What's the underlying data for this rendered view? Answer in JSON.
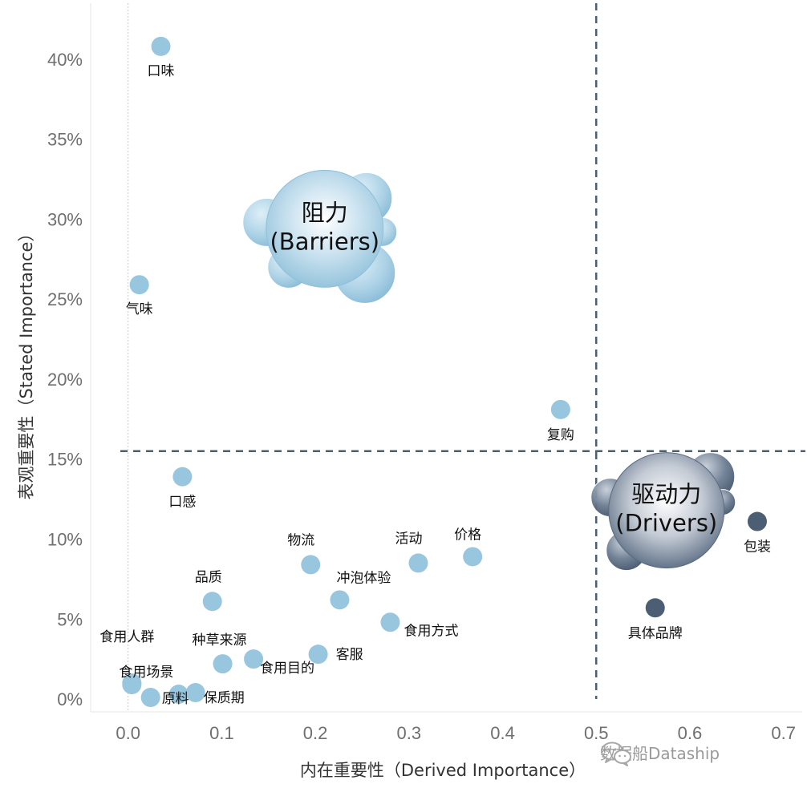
{
  "chart_data": {
    "type": "scatter",
    "xlabel": "内在重要性（Derived Importance）",
    "ylabel": "表观重要性（Stated Importance）",
    "xlim": [
      -0.04,
      0.72
    ],
    "ylim": [
      -0.8,
      43.5
    ],
    "x_ticks": [
      0.0,
      0.1,
      0.2,
      0.3,
      0.4,
      0.5,
      0.6,
      0.7
    ],
    "x_tick_labels": [
      "0.0",
      "0.1",
      "0.2",
      "0.3",
      "0.4",
      "0.5",
      "0.6",
      "0.7"
    ],
    "y_ticks": [
      0,
      5,
      10,
      15,
      20,
      25,
      30,
      35,
      40
    ],
    "y_tick_labels": [
      "0%",
      "5%",
      "10%",
      "15%",
      "20%",
      "25%",
      "30%",
      "35%",
      "40%"
    ],
    "reference_lines": {
      "x": 0.5,
      "y": 15.5
    },
    "colors": {
      "light": "#98c6df",
      "dark": "#4b5e74",
      "reference": "#4e5f70",
      "zero_line": "#c8c8c8"
    },
    "points": [
      {
        "label": "口味",
        "x": 0.035,
        "y": 40.8,
        "group": "light"
      },
      {
        "label": "气味",
        "x": 0.012,
        "y": 25.9,
        "group": "light"
      },
      {
        "label": "复购",
        "x": 0.462,
        "y": 18.1,
        "group": "light"
      },
      {
        "label": "口感",
        "x": 0.058,
        "y": 13.9,
        "group": "light"
      },
      {
        "label": "价格",
        "x": 0.368,
        "y": 8.9,
        "group": "light"
      },
      {
        "label": "活动",
        "x": 0.31,
        "y": 8.5,
        "group": "light"
      },
      {
        "label": "物流",
        "x": 0.195,
        "y": 8.4,
        "group": "light"
      },
      {
        "label": "冲泡体验",
        "x": 0.226,
        "y": 6.2,
        "group": "light"
      },
      {
        "label": "品质",
        "x": 0.09,
        "y": 6.1,
        "group": "light"
      },
      {
        "label": "食用方式",
        "x": 0.28,
        "y": 4.8,
        "group": "light"
      },
      {
        "label": "食用人群",
        "x": 0.004,
        "y": 1.0,
        "group": "light"
      },
      {
        "label": "食用场景",
        "x": 0.004,
        "y": 0.9,
        "group": "light"
      },
      {
        "label": "种草来源",
        "x": 0.101,
        "y": 2.2,
        "group": "light"
      },
      {
        "label": "食用目的",
        "x": 0.134,
        "y": 2.5,
        "group": "light"
      },
      {
        "label": "客服",
        "x": 0.203,
        "y": 2.8,
        "group": "light"
      },
      {
        "label": "原料",
        "x": 0.024,
        "y": 0.1,
        "group": "light"
      },
      {
        "label": "保质期",
        "x": 0.072,
        "y": 0.4,
        "group": "light"
      },
      {
        "label": "",
        "x": 0.054,
        "y": 0.3,
        "group": "light"
      },
      {
        "label": "包装",
        "x": 0.672,
        "y": 11.1,
        "group": "dark"
      },
      {
        "label": "具体品牌",
        "x": 0.563,
        "y": 5.7,
        "group": "dark"
      }
    ],
    "bubbles": [
      {
        "name": "阻力",
        "subtitle": "(Barriers)",
        "x": 0.21,
        "y": 29.4,
        "tone": "light"
      },
      {
        "name": "驱动力",
        "subtitle": "(Drivers)",
        "x": 0.575,
        "y": 11.8,
        "tone": "dark"
      }
    ]
  },
  "watermark": {
    "text": "数据船Dataship",
    "icon": "wechat-icon"
  }
}
